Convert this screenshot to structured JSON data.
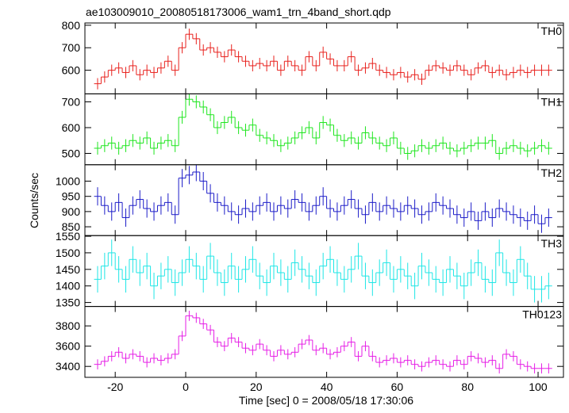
{
  "chart_data": {
    "type": "line",
    "title": "ae103009010_20080518173006_wam1_trn_4band_short.qdp",
    "xlabel": "Time [sec] 0 = 2008/05/18 17:30:06",
    "ylabel": "Counts/sec",
    "xlim": [
      -28.6,
      107.2
    ],
    "xticks": [
      -20,
      0,
      20,
      40,
      60,
      80,
      100
    ],
    "x": [
      -25,
      -23,
      -21,
      -19,
      -17,
      -15,
      -13,
      -11,
      -9,
      -7,
      -5,
      -3,
      -1,
      1,
      3,
      5,
      7,
      9,
      11,
      13,
      15,
      17,
      19,
      21,
      23,
      25,
      27,
      29,
      31,
      33,
      35,
      37,
      39,
      41,
      43,
      45,
      47,
      49,
      51,
      53,
      55,
      57,
      59,
      61,
      63,
      65,
      67,
      69,
      71,
      73,
      75,
      77,
      79,
      81,
      83,
      85,
      87,
      89,
      91,
      93,
      95,
      97,
      99,
      101,
      103
    ],
    "panels": [
      {
        "name": "TH0",
        "color": "#e8211d",
        "ylim": [
          495,
          810
        ],
        "yticks": [
          600,
          700,
          800
        ],
        "yerr": 25,
        "values": [
          540,
          570,
          600,
          610,
          590,
          620,
          580,
          600,
          590,
          610,
          640,
          600,
          700,
          760,
          740,
          690,
          700,
          680,
          660,
          690,
          660,
          640,
          620,
          630,
          620,
          640,
          600,
          640,
          620,
          600,
          660,
          620,
          680,
          650,
          620,
          620,
          660,
          600,
          610,
          630,
          600,
          590,
          580,
          590,
          570,
          580,
          560,
          600,
          620,
          610,
          600,
          620,
          600,
          580,
          610,
          620,
          590,
          600,
          580,
          590,
          600,
          590,
          600,
          600,
          600
        ]
      },
      {
        "name": "TH1",
        "color": "#1ee61e",
        "ylim": [
          456,
          731
        ],
        "yticks": [
          500,
          600,
          700
        ],
        "yerr": 25,
        "values": [
          520,
          530,
          540,
          520,
          530,
          550,
          540,
          560,
          520,
          540,
          550,
          530,
          640,
          710,
          700,
          680,
          650,
          600,
          620,
          640,
          600,
          590,
          610,
          570,
          560,
          550,
          530,
          540,
          560,
          580,
          600,
          560,
          620,
          610,
          570,
          550,
          560,
          540,
          580,
          560,
          540,
          530,
          560,
          520,
          500,
          510,
          530,
          520,
          530,
          540,
          520,
          510,
          520,
          530,
          540,
          540,
          550,
          500,
          520,
          530,
          520,
          510,
          520,
          530,
          520
        ]
      },
      {
        "name": "TH2",
        "color": "#1c1cc8",
        "ylim": [
          821,
          1054
        ],
        "yticks": [
          850,
          900,
          950,
          1000
        ],
        "yerr": 30,
        "values": [
          950,
          920,
          900,
          930,
          880,
          920,
          940,
          910,
          900,
          920,
          930,
          890,
          1010,
          1020,
          1030,
          1000,
          960,
          930,
          920,
          900,
          890,
          910,
          900,
          920,
          930,
          900,
          920,
          910,
          940,
          930,
          900,
          920,
          950,
          910,
          900,
          920,
          940,
          910,
          890,
          930,
          900,
          920,
          910,
          900,
          920,
          910,
          890,
          900,
          930,
          920,
          910,
          890,
          880,
          900,
          870,
          900,
          880,
          910,
          900,
          890,
          880,
          870,
          890,
          860,
          880
        ]
      },
      {
        "name": "TH3",
        "color": "#1ee6e6",
        "ylim": [
          1338,
          1552
        ],
        "yticks": [
          1350,
          1400,
          1450,
          1500,
          1550
        ],
        "yerr": 40,
        "values": [
          1420,
          1460,
          1500,
          1450,
          1420,
          1480,
          1440,
          1460,
          1400,
          1430,
          1450,
          1410,
          1440,
          1480,
          1460,
          1420,
          1490,
          1440,
          1410,
          1460,
          1420,
          1450,
          1480,
          1430,
          1410,
          1460,
          1440,
          1420,
          1470,
          1450,
          1430,
          1410,
          1460,
          1480,
          1440,
          1420,
          1450,
          1490,
          1430,
          1410,
          1440,
          1470,
          1420,
          1450,
          1430,
          1400,
          1460,
          1440,
          1420,
          1410,
          1450,
          1430,
          1400,
          1440,
          1470,
          1420,
          1410,
          1500,
          1440,
          1410,
          1480,
          1430,
          1390,
          1390,
          1400
        ]
      },
      {
        "name": "TH0123",
        "color": "#e61ee6",
        "ylim": [
          3292,
          3992
        ],
        "yticks": [
          3400,
          3600,
          3800
        ],
        "yerr": 50,
        "values": [
          3420,
          3450,
          3500,
          3540,
          3480,
          3520,
          3500,
          3440,
          3480,
          3460,
          3480,
          3520,
          3700,
          3900,
          3880,
          3820,
          3760,
          3640,
          3600,
          3680,
          3640,
          3580,
          3560,
          3620,
          3560,
          3500,
          3560,
          3520,
          3540,
          3620,
          3660,
          3560,
          3580,
          3520,
          3540,
          3600,
          3640,
          3500,
          3600,
          3500,
          3440,
          3460,
          3480,
          3440,
          3460,
          3420,
          3400,
          3440,
          3460,
          3420,
          3400,
          3460,
          3420,
          3500,
          3480,
          3440,
          3460,
          3380,
          3520,
          3500,
          3420,
          3400,
          3380,
          3380,
          3380
        ]
      }
    ]
  }
}
